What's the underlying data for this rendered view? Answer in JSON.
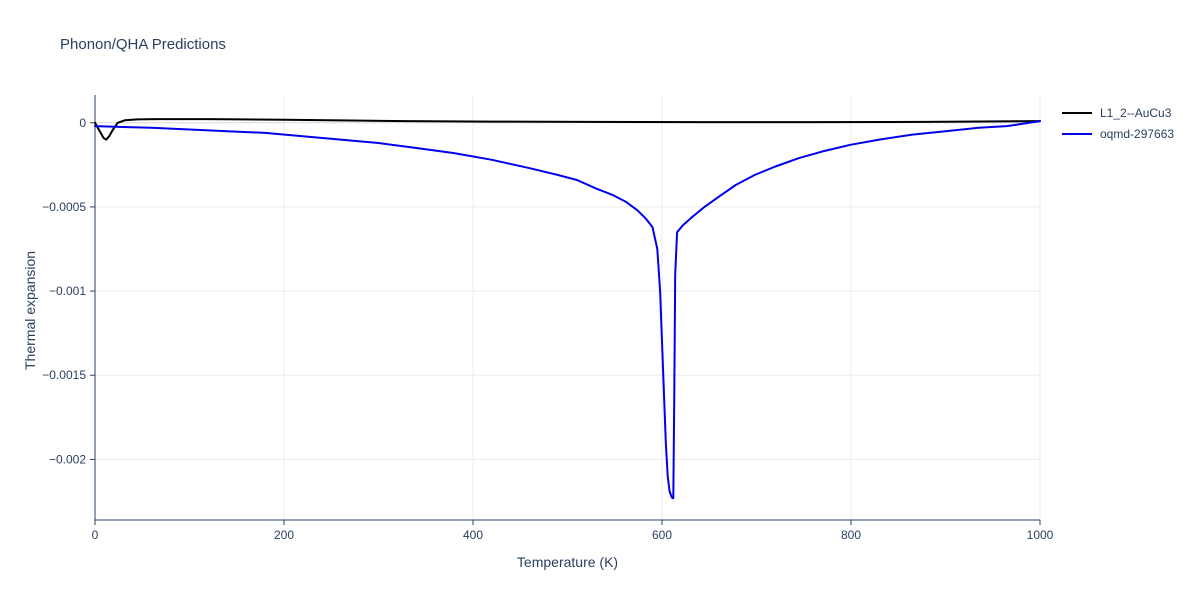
{
  "chart_data": {
    "type": "line",
    "title": "Phonon/QHA Predictions",
    "xlabel": "Temperature (K)",
    "ylabel": "Thermal expansion",
    "xlim": [
      0,
      1000
    ],
    "ylim": [
      -0.00236,
      0.000165
    ],
    "xticks": [
      0,
      200,
      400,
      600,
      800,
      1000
    ],
    "xtick_labels": [
      "0",
      "200",
      "400",
      "600",
      "800",
      "1000"
    ],
    "yticks": [
      0,
      -0.0005,
      -0.001,
      -0.0015,
      -0.002
    ],
    "ytick_labels": [
      "0",
      "−0.0005",
      "−0.001",
      "−0.0015",
      "−0.002"
    ],
    "grid": true,
    "legend_position": "top-right",
    "style": {
      "text_color": "#2a3f5f",
      "grid_color": "#ebebeb",
      "zeroline_color": "#d8d8d8",
      "axis_color": "#2a3f5f",
      "background": "#ffffff"
    },
    "series": [
      {
        "name": "L1_2--AuCu3",
        "color": "#000000",
        "width": 2,
        "x": [
          0,
          3,
          6,
          9,
          12,
          15,
          19,
          24,
          32,
          45,
          65,
          90,
          120,
          155,
          200,
          260,
          330,
          420,
          520,
          640,
          760,
          880,
          1000
        ],
        "y": [
          0,
          -3e-05,
          -6e-05,
          -9e-05,
          -0.0001,
          -8e-05,
          -4e-05,
          0,
          1.5e-05,
          2e-05,
          2.2e-05,
          2.2e-05,
          2.2e-05,
          2e-05,
          1.8e-05,
          1.4e-05,
          1e-05,
          7e-06,
          5e-06,
          4e-06,
          4e-06,
          5e-06,
          1e-05
        ],
        "description": "Nearly flat line at zero with a small V-shaped dip to about -0.0001 near T=10 K"
      },
      {
        "name": "oqmd-297663",
        "color": "#0000ee",
        "width": 2,
        "x": [
          0,
          30,
          60,
          100,
          140,
          180,
          220,
          260,
          300,
          340,
          380,
          420,
          460,
          490,
          510,
          530,
          548,
          562,
          574,
          583,
          590,
          595,
          598,
          600,
          602,
          604,
          606,
          608,
          610,
          611,
          612,
          613,
          614,
          616,
          622,
          632,
          645,
          660,
          678,
          698,
          720,
          745,
          770,
          800,
          830,
          865,
          900,
          935,
          965,
          1000
        ],
        "y": [
          -2e-05,
          -2.5e-05,
          -3e-05,
          -4e-05,
          -5e-05,
          -6e-05,
          -8e-05,
          -0.0001,
          -0.00012,
          -0.00015,
          -0.00018,
          -0.00022,
          -0.00027,
          -0.00031,
          -0.00034,
          -0.00039,
          -0.00043,
          -0.00047,
          -0.00052,
          -0.00057,
          -0.00062,
          -0.00075,
          -0.001,
          -0.0013,
          -0.0016,
          -0.0019,
          -0.0021,
          -0.00219,
          -0.00222,
          -0.00223,
          -0.00223,
          -0.0016,
          -0.0009,
          -0.00065,
          -0.00061,
          -0.00056,
          -0.0005,
          -0.00044,
          -0.00037,
          -0.00031,
          -0.00026,
          -0.00021,
          -0.00017,
          -0.00013,
          -0.0001,
          -7e-05,
          -5e-05,
          -3e-05,
          -2e-05,
          1e-05
        ],
        "description": "Slowly decreasing curve with a sharp deep dip to about -0.00223 near T=605-612 K, then abrupt recovery and gradual return toward zero"
      }
    ]
  }
}
